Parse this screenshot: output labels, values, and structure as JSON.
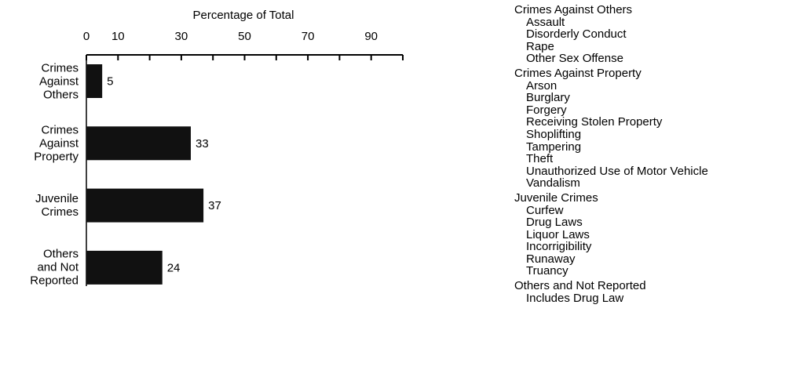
{
  "chart_data": {
    "type": "barh",
    "xlabel": "Percentage of Total",
    "categories": [
      "Crimes Against Others",
      "Crimes Against Property",
      "Juvenile Crimes",
      "Others and Not Reported"
    ],
    "values": [
      5,
      33,
      37,
      24
    ],
    "color": "#111111",
    "xlim": [
      0,
      100
    ],
    "xticks": [
      0,
      10,
      30,
      50,
      70,
      90
    ],
    "xminor_ticks": [
      20,
      40,
      60,
      80,
      100
    ],
    "legend_groups": [
      {
        "heading": "Crimes Against Others",
        "items": [
          "Assault",
          "Disorderly Conduct",
          "Rape",
          "Other Sex Offense"
        ]
      },
      {
        "heading": "Crimes Against Property",
        "items": [
          "Arson",
          "Burglary",
          "Forgery",
          "Receiving Stolen Property",
          "Shoplifting",
          "Tampering",
          "Theft",
          "Unauthorized Use of Motor Vehicle",
          "Vandalism"
        ]
      },
      {
        "heading": "Juvenile Crimes",
        "items": [
          "Curfew",
          "Drug Laws",
          "Liquor Laws",
          "Incorrigibility",
          "Runaway",
          "Truancy"
        ]
      },
      {
        "heading": "Others and Not Reported",
        "items": [
          "Includes Drug Law"
        ]
      }
    ]
  }
}
